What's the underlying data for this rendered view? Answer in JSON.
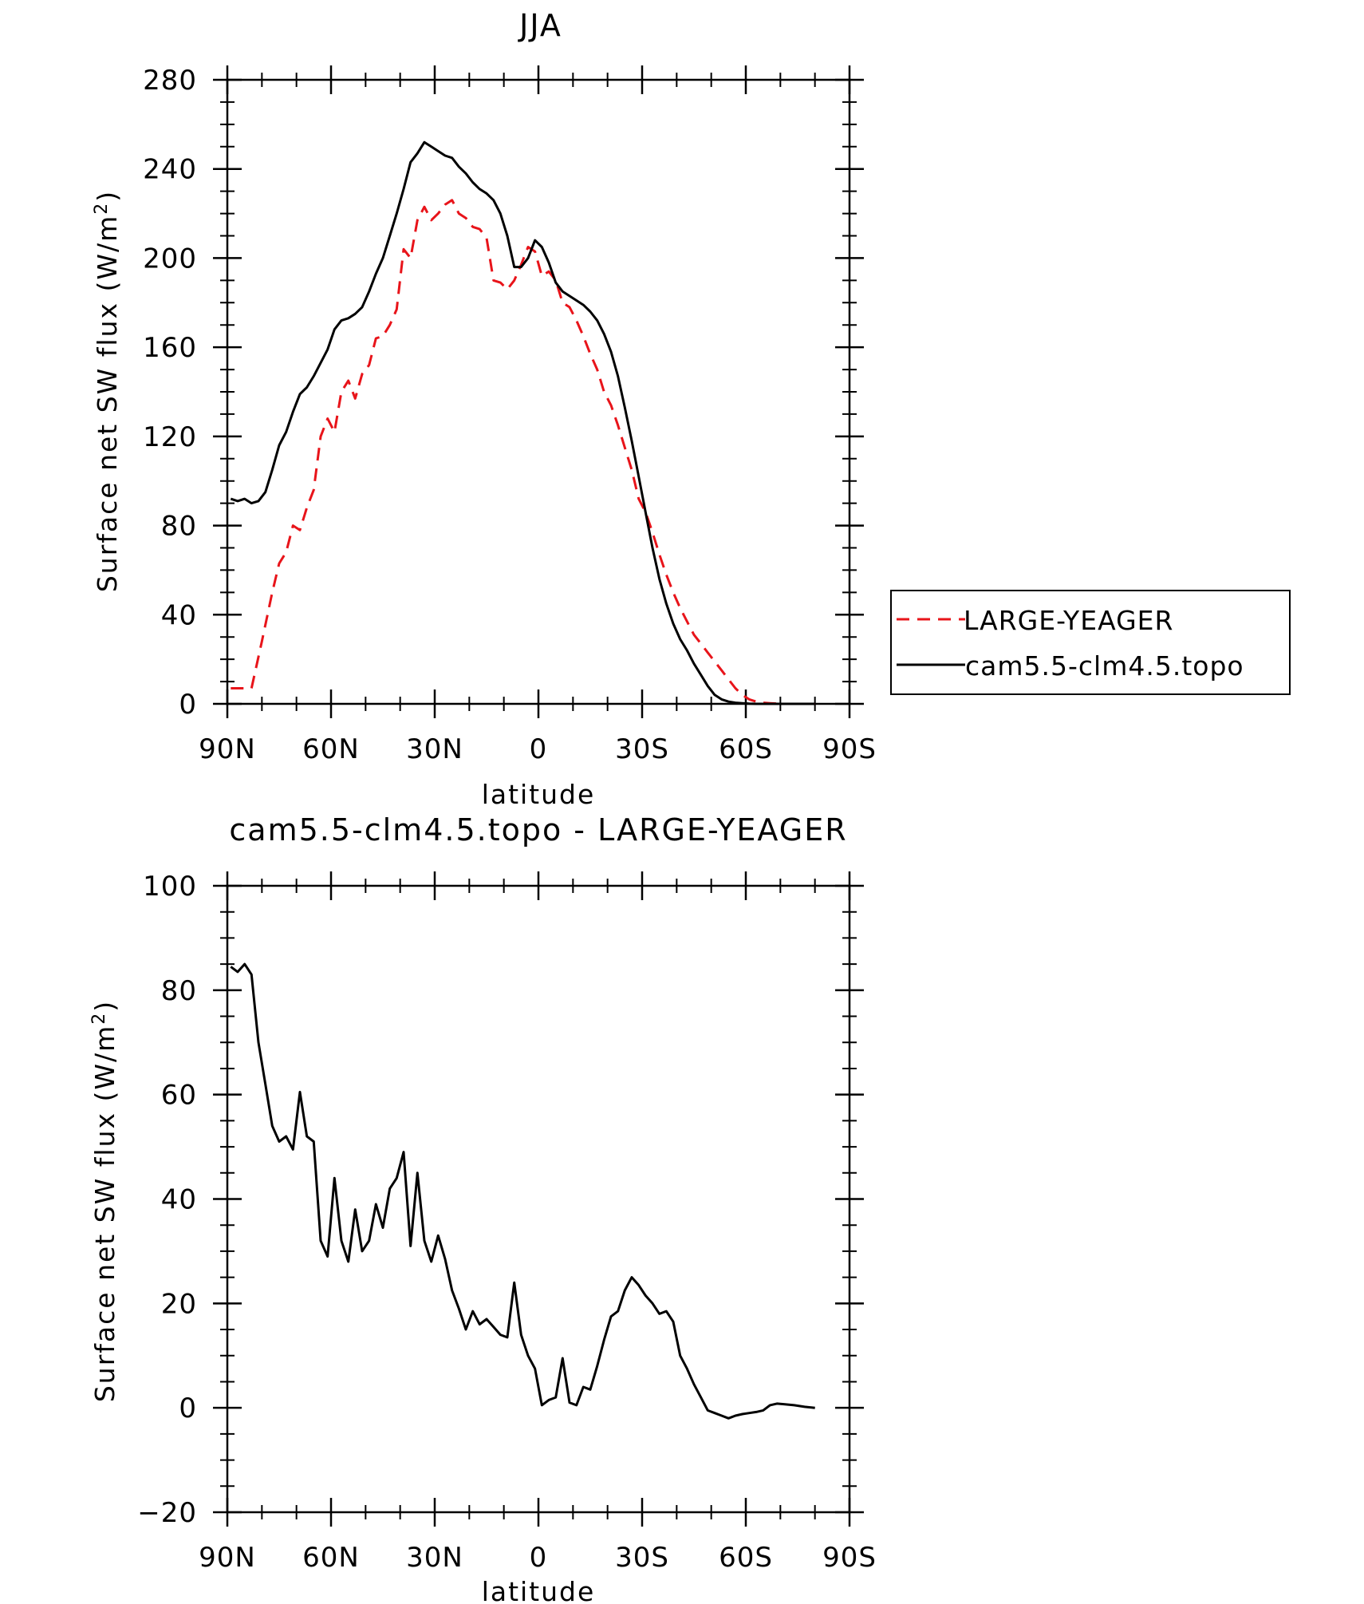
{
  "chart_data": [
    {
      "type": "line",
      "title": "JJA",
      "xlabel": "latitude",
      "ylabel": "Surface net SW flux (W/m²)",
      "ylabel_main": "Surface net SW flux (W/m",
      "ylabel_sup": "2",
      "ylabel_close": ")",
      "xlim": [
        90,
        -90
      ],
      "ylim": [
        0,
        280
      ],
      "yticks": [
        0,
        40,
        80,
        120,
        160,
        200,
        240,
        280
      ],
      "ytick_labels": [
        "0",
        "40",
        "80",
        "120",
        "160",
        "200",
        "240",
        "280"
      ],
      "xticks": [
        90,
        60,
        30,
        0,
        -30,
        -60,
        -90
      ],
      "xtick_labels": [
        "90N",
        "60N",
        "30N",
        "0",
        "30S",
        "60S",
        "90S"
      ],
      "legend": {
        "entries": [
          "LARGE-YEAGER",
          "cam5.5-clm4.5.topo"
        ],
        "placement": "right"
      },
      "series": [
        {
          "name": "LARGE-YEAGER",
          "color": "#e8141a",
          "dash": "dashed",
          "x": [
            89,
            86,
            83,
            80,
            77,
            75,
            73,
            71,
            69,
            67,
            65,
            63,
            61,
            59,
            57,
            55,
            53,
            51,
            49,
            47,
            45,
            43,
            41,
            39,
            37,
            35,
            33,
            31,
            29,
            27,
            25,
            23,
            21,
            19,
            17,
            15,
            13,
            11,
            9,
            7,
            5,
            3,
            1,
            -1,
            -3,
            -5,
            -7,
            -9,
            -11,
            -13,
            -15,
            -17,
            -19,
            -21,
            -23,
            -25,
            -27,
            -29,
            -31,
            -33,
            -35,
            -37,
            -39,
            -41,
            -43,
            -45,
            -47,
            -49,
            -51,
            -53,
            -55,
            -57,
            -59,
            -61,
            -63,
            -65,
            -67,
            -69,
            -71,
            -74,
            -77,
            -80
          ],
          "y": [
            7,
            7,
            7,
            28,
            50,
            63,
            68,
            80,
            78,
            88,
            96,
            120,
            128,
            122,
            140,
            145,
            137,
            148,
            152,
            164,
            165,
            170,
            177,
            204,
            200,
            217,
            223,
            217,
            220,
            224,
            226,
            220,
            218,
            214,
            213,
            209,
            190,
            189,
            186,
            190,
            197,
            205,
            203,
            192,
            194,
            190,
            180,
            178,
            172,
            165,
            157,
            150,
            140,
            134,
            125,
            115,
            105,
            92,
            86,
            77,
            67,
            58,
            50,
            43,
            37,
            31,
            27,
            23,
            19,
            15,
            11,
            7,
            4,
            2,
            1,
            0.5,
            0.3,
            0.1,
            0,
            0,
            0,
            0
          ]
        },
        {
          "name": "cam5.5-clm4.5.topo",
          "color": "#000000",
          "dash": "solid",
          "x": [
            89,
            87,
            85,
            83,
            81,
            79,
            77,
            75,
            73,
            71,
            69,
            67,
            65,
            63,
            61,
            59,
            57,
            55,
            53,
            51,
            49,
            47,
            45,
            43,
            41,
            39,
            37,
            35,
            33,
            31,
            29,
            27,
            25,
            23,
            21,
            19,
            17,
            15,
            13,
            11,
            9,
            7,
            5,
            3,
            1,
            -1,
            -3,
            -5,
            -7,
            -9,
            -11,
            -13,
            -15,
            -17,
            -19,
            -21,
            -23,
            -25,
            -27,
            -29,
            -31,
            -33,
            -35,
            -37,
            -39,
            -41,
            -43,
            -45,
            -47,
            -49,
            -51,
            -53,
            -55,
            -57,
            -59,
            -61,
            -63,
            -65,
            -67,
            -69,
            -71,
            -74,
            -77,
            -80
          ],
          "y": [
            92,
            91,
            92,
            90,
            91,
            95,
            105,
            116,
            122,
            131,
            139,
            142,
            147,
            153,
            159,
            168,
            172,
            173,
            175,
            178,
            185,
            193,
            200,
            210,
            220,
            231,
            243,
            247,
            252,
            250,
            248,
            246,
            245,
            241,
            238,
            234,
            231,
            229,
            226,
            220,
            210,
            196,
            196,
            200,
            208,
            205,
            198,
            189,
            185,
            183,
            181,
            179,
            176,
            172,
            166,
            158,
            147,
            133,
            118,
            102,
            86,
            70,
            56,
            45,
            36,
            29,
            24,
            18,
            13,
            8,
            4,
            2,
            1,
            0.5,
            0.3,
            0.1,
            0,
            0,
            0,
            0,
            0,
            0,
            0,
            0
          ]
        }
      ]
    },
    {
      "type": "line",
      "title": "cam5.5-clm4.5.topo - LARGE-YEAGER",
      "xlabel": "latitude",
      "ylabel": "Surface net SW flux (W/m²)",
      "ylabel_main": "Surface net SW flux (W/m",
      "ylabel_sup": "2",
      "ylabel_close": ")",
      "xlim": [
        90,
        -90
      ],
      "ylim": [
        -20,
        100
      ],
      "yticks": [
        -20,
        0,
        20,
        40,
        60,
        80,
        100
      ],
      "ytick_labels": [
        "−20",
        "0",
        "20",
        "40",
        "60",
        "80",
        "100"
      ],
      "xticks": [
        90,
        60,
        30,
        0,
        -30,
        -60,
        -90
      ],
      "xtick_labels": [
        "90N",
        "60N",
        "30N",
        "0",
        "30S",
        "60S",
        "90S"
      ],
      "series": [
        {
          "name": "cam5.5-clm4.5.topo - LARGE-YEAGER",
          "color": "#000000",
          "dash": "solid",
          "x": [
            89,
            87,
            85,
            83,
            81,
            79,
            77,
            75,
            73,
            71,
            69,
            67,
            65,
            63,
            61,
            59,
            57,
            55,
            53,
            51,
            49,
            47,
            45,
            43,
            41,
            39,
            37,
            35,
            33,
            31,
            29,
            27,
            25,
            23,
            21,
            19,
            17,
            15,
            13,
            11,
            9,
            7,
            5,
            3,
            1,
            -1,
            -3,
            -5,
            -7,
            -9,
            -11,
            -13,
            -15,
            -17,
            -19,
            -21,
            -23,
            -25,
            -27,
            -29,
            -31,
            -33,
            -35,
            -37,
            -39,
            -41,
            -43,
            -45,
            -47,
            -49,
            -51,
            -53,
            -55,
            -57,
            -59,
            -61,
            -63,
            -65,
            -67,
            -69,
            -71,
            -74,
            -77,
            -80
          ],
          "y": [
            84.5,
            83.5,
            85,
            83,
            70,
            62,
            54,
            51,
            52,
            49.5,
            60.5,
            52,
            51,
            32,
            29,
            44,
            32,
            28,
            38,
            30,
            32,
            39,
            34.5,
            42,
            44,
            49,
            31,
            45,
            32,
            28,
            33,
            28.5,
            22.5,
            19,
            15,
            18.5,
            16,
            17,
            15.5,
            14,
            13.5,
            24,
            14,
            10,
            7.5,
            0.5,
            1.5,
            2,
            9.5,
            1,
            0.5,
            4,
            3.5,
            8,
            13,
            17.5,
            18.5,
            22.5,
            25,
            23.5,
            21.5,
            20,
            18,
            18.5,
            16.5,
            10,
            7.5,
            4.5,
            2,
            -0.5,
            -1,
            -1.5,
            -2,
            -1.5,
            -1.2,
            -1,
            -0.8,
            -0.5,
            0.5,
            0.8,
            0.7,
            0.5,
            0.2,
            0
          ]
        }
      ]
    }
  ]
}
